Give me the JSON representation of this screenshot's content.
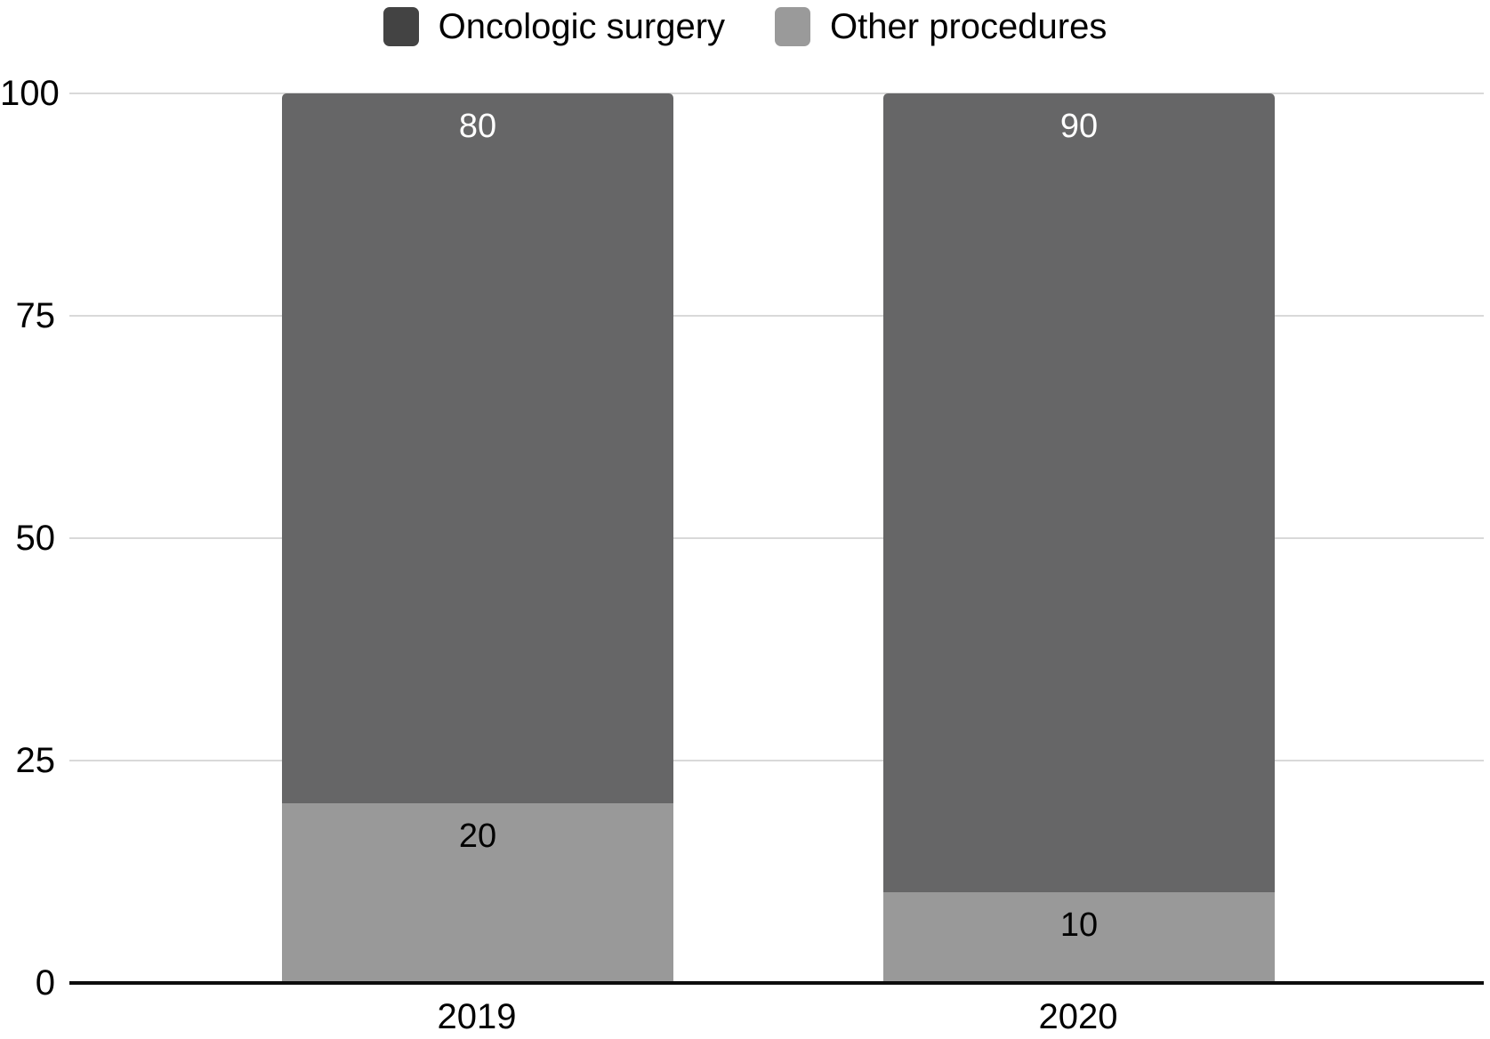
{
  "chart_data": {
    "type": "bar",
    "stacked": true,
    "title": "",
    "xlabel": "",
    "ylabel": "",
    "categories": [
      "2019",
      "2020"
    ],
    "series": [
      {
        "name": "Oncologic surgery",
        "values": [
          80,
          90
        ],
        "color": "#666667",
        "legend_color": "#434343",
        "label_color": "#ffffff"
      },
      {
        "name": "Other procedures",
        "values": [
          20,
          10
        ],
        "color": "#999999",
        "legend_color": "#9a9a9a",
        "label_color": "#000000"
      }
    ],
    "ylim": [
      0,
      100
    ],
    "ytick_labels": [
      "100",
      "75",
      "50",
      "25",
      "0"
    ],
    "grid": true,
    "legend_position": "top",
    "colors": {
      "gridline": "#d9d9d9",
      "axis_line": "#0d0d0d",
      "text": "#000000"
    }
  }
}
